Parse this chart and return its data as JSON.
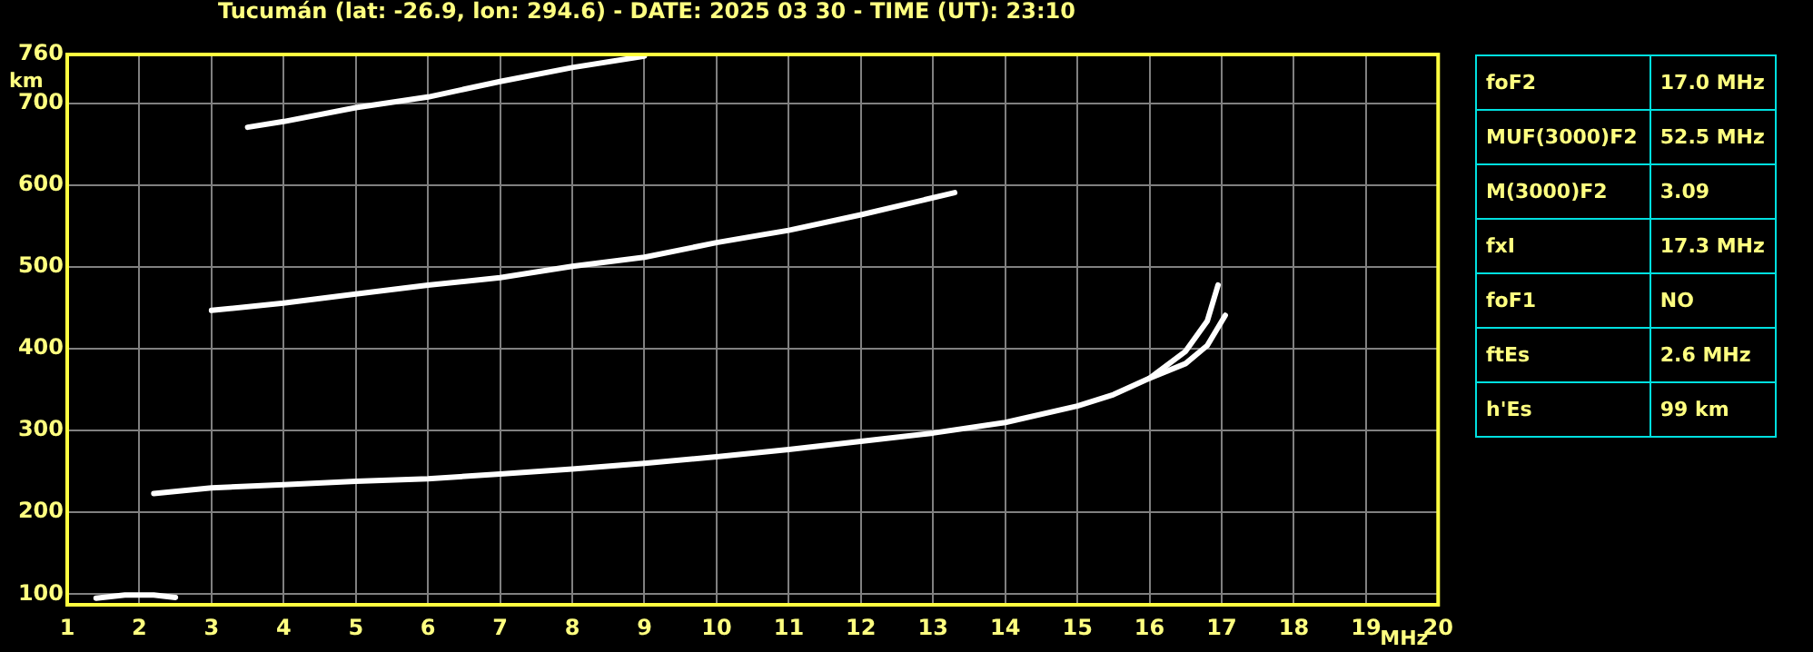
{
  "chart_data": {
    "type": "line",
    "title": "Tucumán (lat: -26.9, lon: 294.6) - DATE: 2025 03 30 - TIME (UT): 23:10",
    "xlabel": "MHz",
    "ylabel": "km",
    "xlim": [
      1,
      20
    ],
    "xticks": [
      1,
      2,
      3,
      4,
      5,
      6,
      7,
      8,
      9,
      10,
      11,
      12,
      13,
      14,
      15,
      16,
      17,
      18,
      19,
      20
    ],
    "ylim": [
      87,
      760
    ],
    "yticks": [
      100,
      200,
      300,
      400,
      500,
      600,
      700,
      760
    ],
    "grid": true,
    "legend": false,
    "marker": "none",
    "line_style": "solid",
    "series": [
      {
        "color": "#ffffff",
        "x": [
          2.2,
          3,
          4,
          5,
          6,
          7,
          8,
          9,
          10,
          11,
          12,
          13,
          14,
          15,
          15.5,
          16,
          16.5,
          16.8,
          16.95
        ],
        "values": [
          223,
          230,
          234,
          238,
          241,
          247,
          253,
          260,
          268,
          277,
          287,
          297,
          310,
          330,
          344,
          364,
          397,
          434,
          478
        ]
      },
      {
        "color": "#ffffff",
        "x": [
          16,
          16.5,
          16.8,
          17.05
        ],
        "values": [
          364,
          382,
          404,
          441
        ]
      },
      {
        "color": "#ffffff",
        "x": [
          3,
          4,
          5,
          6,
          7,
          8,
          9,
          10,
          11,
          12,
          13.3
        ],
        "values": [
          447,
          456,
          467,
          478,
          487,
          501,
          512,
          530,
          545,
          564,
          591
        ]
      },
      {
        "color": "#ffffff",
        "x": [
          3.5,
          4,
          5,
          6,
          7,
          8,
          9
        ],
        "values": [
          671,
          678,
          695,
          708,
          727,
          744,
          758
        ]
      },
      {
        "color": "#ffffff",
        "x": [
          1.4,
          1.8,
          2.2,
          2.5
        ],
        "values": [
          95,
          99,
          99,
          96
        ]
      }
    ],
    "annotations": [
      "foF2",
      "17.0 MHz",
      "MUF(3000)F2",
      "52.5 MHz",
      "M(3000)F2",
      "3.09",
      "fxI",
      "17.3 MHz",
      "foF1",
      "NO",
      "ftEs",
      "2.6 MHz",
      "h'Es",
      "99 km"
    ]
  }
}
